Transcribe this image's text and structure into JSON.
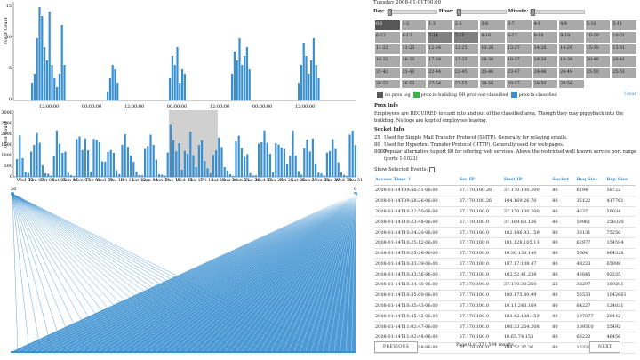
{
  "top_chart": {
    "ylabel": "Event Count",
    "yticks": [
      "0",
      "5",
      "10",
      "15"
    ],
    "xticks": [
      "12:00:00",
      "00:00:00",
      "12:00:00",
      "00:00:00",
      "12:00:00",
      "00:00:00",
      "12:00:00"
    ],
    "bar_color": "#3a8fd0"
  },
  "mid_chart": {
    "ylabel": "Event Count",
    "yticks": [
      "0",
      "500",
      "1000",
      "1500",
      "2000",
      "2500",
      "3000"
    ],
    "xticks": [
      "Wed 02",
      "Thu 03",
      "Fri 04",
      "Sat 05",
      "Sun 06",
      "Mon 07",
      "Tue 08",
      "Wed 09",
      "Thu 10",
      "Fri 11",
      "Sat 12",
      "Sun 13",
      "Mon 14",
      "Tue 15",
      "Wed 16",
      "Thu 17",
      "Fri 18",
      "Sat 19",
      "Sun 20",
      "Mon 21",
      "Tue 22",
      "Wed 23",
      "Thu 24",
      "Fri 25",
      "Sat 26",
      "Sun 27",
      "Mon 28",
      "Tue 29",
      "Wed 30",
      "Thu 31"
    ]
  },
  "fan": {
    "left_label": "26",
    "right_label": "0"
  },
  "right": {
    "title": "Tuesday 2008-01-01T00:00",
    "day_label": "Day:",
    "hour_label": "Hour:",
    "minute_label": "Minute:",
    "grid": [
      "0-0",
      "0-1",
      "1-2",
      "1-3",
      "2-5",
      "3-6",
      "3-7",
      "4-8",
      "4-9",
      "5-10",
      "5-11",
      "6-12",
      "6-13",
      "7-14",
      "7-15",
      "8-16",
      "8-17",
      "9-18",
      "9-19",
      "10-20",
      "10-21",
      "11-22",
      "11-23",
      "12-24",
      "12-25",
      "13-26",
      "13-27",
      "14-28",
      "14-29",
      "15-30",
      "15-31",
      "16-32",
      "16-33",
      "17-34",
      "17-35",
      "18-36",
      "18-37",
      "19-38",
      "19-39",
      "20-40",
      "20-41",
      "21-42",
      "21-43",
      "22-44",
      "22-45",
      "23-46",
      "23-47",
      "24-48",
      "24-49",
      "25-50",
      "25-51",
      "26-52",
      "26-53",
      "27-54",
      "27-55",
      "28-56",
      "28-57",
      "29-58",
      "29-59"
    ],
    "legend": [
      {
        "label": "no prox log",
        "color": "#575757"
      },
      {
        "label": "prox-in-building OR prox-out-classified",
        "color": "#3cb44b"
      },
      {
        "label": "prox-in-classified",
        "color": "#3a8fd0"
      }
    ],
    "clear": "Clear",
    "prox_title": "Prox Info",
    "prox_text": "Employees are REQUIRED to card into and out of the classified area. Though they may piggyback into the building. No logs are kept of employees leaving.",
    "socket_title": "Socket Info",
    "sockets": [
      {
        "port": "25",
        "desc": "Used for Simple Mail Transfer Protocol (SMTP). Generally for relaying emails."
      },
      {
        "port": "80",
        "desc": "Used for Hypertext Transfer Protocol (HTTP). Generally used for web pages."
      },
      {
        "port": "8080",
        "desc": "Popular alternative to port 80 for offering web services. Above the restricted well known service port range (ports 1-1023)"
      }
    ],
    "show_selected": "Show Selected Events:",
    "columns": [
      "Access Time ↑",
      "Src IP",
      "Dest IP",
      "Socket",
      "Req Size",
      "Rsp Size"
    ],
    "rows": [
      [
        "2008-01-14T09:56:51-06:00",
        "37.170.100.26",
        "37.170.100.200",
        "80",
        "6194",
        "58722"
      ],
      [
        "2008-01-14T09:58:26-06:00",
        "37.170.100.26",
        "104.169.26.70",
        "80",
        "35122",
        "417761"
      ],
      [
        "2008-01-14T10:22:50-06:00",
        "37.170.100.0",
        "37.170.100.200",
        "80",
        "4637",
        "56034"
      ],
      [
        "2008-01-14T10:23:48-06:00",
        "37.170.100.0",
        "37.169.63.126",
        "80",
        "59961",
        "258320"
      ],
      [
        "2008-01-14T10:24:20-06:00",
        "37.170.100.0",
        "102.146.93.159",
        "80",
        "38131",
        "75250"
      ],
      [
        "2008-01-14T10:25:12-06:00",
        "37.170.100.0",
        "101.128.105.13",
        "80",
        "62977",
        "154594"
      ],
      [
        "2008-01-14T10:25:26-06:00",
        "37.170.100.0",
        "10.30.138.140",
        "80",
        "5664",
        "964328"
      ],
      [
        "2008-01-14T10:33:39-06:00",
        "37.170.100.0",
        "107.17.108.47",
        "80",
        "48223",
        "65898"
      ],
      [
        "2008-01-14T10:33:56-06:00",
        "37.170.100.0",
        "102.52.41.238",
        "80",
        "43845",
        "92235"
      ],
      [
        "2008-01-14T10:34:40-06:00",
        "37.170.100.0",
        "37.170.30.250",
        "25",
        "38297",
        "169291"
      ],
      [
        "2008-01-14T10:35:00-06:00",
        "37.170.100.0",
        "100.175.80.99",
        "80",
        "55533",
        "1042661"
      ],
      [
        "2008-01-14T10:35:43-06:00",
        "37.170.100.0",
        "10.11.243.169",
        "80",
        "64227",
        "124031"
      ],
      [
        "2008-01-14T10:45:42-06:00",
        "37.170.100.0",
        "103.42.108.159",
        "80",
        "197877",
        "29442"
      ],
      [
        "2008-01-14T11:02:47-06:00",
        "37.170.100.0",
        "100.33.254.208",
        "80",
        "109510",
        "55492"
      ],
      [
        "2008-01-14T11:02:48-06:00",
        "37.170.100.0",
        "10.65.74.153",
        "80",
        "68223",
        "46456"
      ],
      [
        "2008-01-14T11:05:08-06:00",
        "37.170.100.0",
        "104.52.37.36",
        "80",
        "16326",
        "27211"
      ]
    ],
    "prev": "PREVIOUS",
    "next": "NEXT",
    "page_text": "Page 0 of 37 | 594 results"
  }
}
